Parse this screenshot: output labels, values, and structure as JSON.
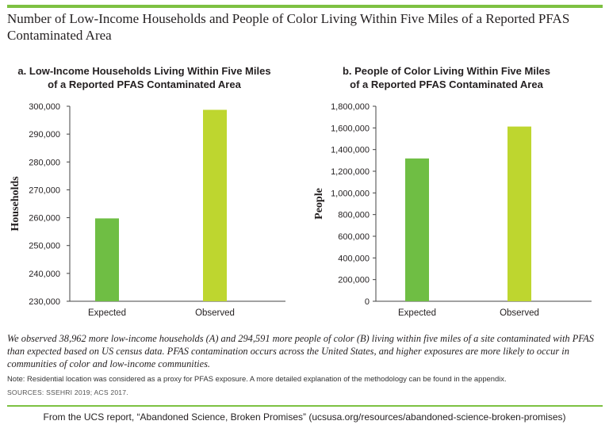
{
  "title": "Number of Low-Income Households and People of Color Living Within Five Miles of a Reported PFAS Contaminated Area",
  "colors": {
    "expected": "#6fbe44",
    "observed": "#bed62f",
    "rule": "#7dc142",
    "axis": "#444444"
  },
  "chart_data": [
    {
      "type": "bar",
      "title_lines": [
        "a. Low-Income Households Living Within Five Miles",
        "of a Reported PFAS Contaminated Area"
      ],
      "ylabel": "Households",
      "categories": [
        "Expected",
        "Observed"
      ],
      "values": [
        259750,
        298712
      ],
      "ylim": [
        230000,
        300000
      ],
      "yticks": [
        230000,
        240000,
        250000,
        260000,
        270000,
        280000,
        290000,
        300000
      ],
      "ytick_labels": [
        "230,000",
        "240,000",
        "250,000",
        "260,000",
        "270,000",
        "280,000",
        "290,000",
        "300,000"
      ],
      "grid": false
    },
    {
      "type": "bar",
      "title_lines": [
        "b. People of Color Living Within Five Miles",
        "of a Reported PFAS Contaminated Area"
      ],
      "ylabel": "People",
      "categories": [
        "Expected",
        "Observed"
      ],
      "values": [
        1318000,
        1612591
      ],
      "ylim": [
        0,
        1800000
      ],
      "yticks": [
        0,
        200000,
        400000,
        600000,
        800000,
        1000000,
        1200000,
        1400000,
        1600000,
        1800000
      ],
      "ytick_labels": [
        "0",
        "200,000",
        "400,000",
        "600,000",
        "800,000",
        "1,000,000",
        "1,200,000",
        "1,400,000",
        "1,600,000",
        "1,800,000"
      ],
      "grid": false
    }
  ],
  "caption": "We observed 38,962 more low-income households (A) and 294,591 more people of color (B) living within five miles of a site contaminated with PFAS than expected based on US census data. PFAS contamination occurs across the United States, and higher exposures are more likely to occur in communities of color and low-income communities.",
  "note": "Note: Residential location was considered as a proxy for PFAS exposure. A more detailed explanation of the methodology can be found in the appendix.",
  "sources": "SOURCES: SSEHRI 2019; ACS 2017.",
  "footer": "From the UCS report, “Abandoned Science, Broken Promises” (ucsusa.org/resources/abandoned-science-broken-promises)"
}
